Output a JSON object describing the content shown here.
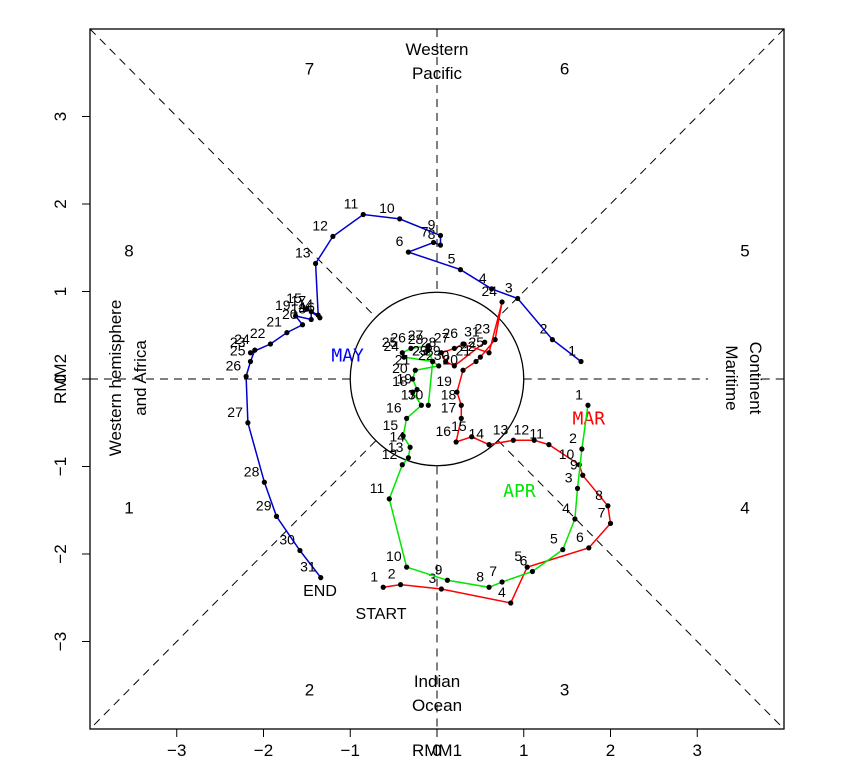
{
  "chart_data": {
    "type": "line",
    "title": "",
    "xlabel": "RMM1",
    "ylabel": "RMM2",
    "xlim": [
      -4,
      4
    ],
    "ylim": [
      -4,
      4
    ],
    "xticks": [
      -3,
      -2,
      -1,
      0,
      1,
      2,
      3
    ],
    "yticks": [
      -3,
      -2,
      -1,
      0,
      1,
      2,
      3
    ],
    "grid": false,
    "unit_circle_radius": 1,
    "phase_numbers": [
      "1",
      "2",
      "3",
      "4",
      "5",
      "6",
      "7",
      "8"
    ],
    "region_labels": {
      "top": [
        "Western",
        "Pacific"
      ],
      "bottom": [
        "Indian",
        "Ocean"
      ],
      "left": [
        "Western hemisphere",
        "and Africa"
      ],
      "right": [
        "Maritime",
        "Continent"
      ]
    },
    "annotations": {
      "start": "START",
      "end": "END"
    },
    "series": [
      {
        "name": "MAR",
        "color": "#ff0000",
        "label_color": "#ff0000",
        "label": "MAR",
        "days": [
          "1",
          "2",
          "3",
          "4",
          "5",
          "6",
          "7",
          "8",
          "9",
          "10",
          "11",
          "12",
          "13",
          "14",
          "15",
          "16",
          "17",
          "18",
          "19",
          "20",
          "21",
          "22",
          "23",
          "24",
          "25",
          "26",
          "27",
          "28",
          "29",
          "30",
          "31"
        ],
        "x": [
          -0.62,
          -0.42,
          0.05,
          0.85,
          1.04,
          1.75,
          2,
          1.97,
          1.68,
          1.64,
          1.29,
          1.12,
          0.88,
          0.6,
          0.4,
          0.22,
          0.28,
          0.28,
          0.23,
          0.3,
          0.45,
          0.5,
          0.67,
          0.75,
          0.6,
          0.3,
          0.2,
          0.05,
          0.1,
          0.2,
          0.55
        ],
        "y": [
          -2.38,
          -2.35,
          -2.4,
          -2.56,
          -2.15,
          -1.93,
          -1.65,
          -1.45,
          -1.1,
          -0.98,
          -0.75,
          -0.7,
          -0.7,
          -0.75,
          -0.66,
          -0.72,
          -0.45,
          -0.3,
          -0.15,
          0.1,
          0.2,
          0.25,
          0.45,
          0.88,
          0.3,
          0.4,
          0.35,
          0.3,
          0.2,
          0.15,
          0.42
        ]
      },
      {
        "name": "APR",
        "color": "#00e600",
        "label_color": "#00e600",
        "label": "APR",
        "days": [
          "1",
          "2",
          "3",
          "4",
          "5",
          "6",
          "7",
          "8",
          "9",
          "10",
          "11",
          "12",
          "13",
          "14",
          "15",
          "16",
          "17",
          "18",
          "19",
          "20",
          "21",
          "22",
          "23",
          "24",
          "25",
          "26",
          "27",
          "28",
          "29",
          "30"
        ],
        "x": [
          1.74,
          1.67,
          1.62,
          1.59,
          1.45,
          1.1,
          0.75,
          0.6,
          0.12,
          -0.35,
          -0.55,
          -0.4,
          -0.33,
          -0.31,
          -0.39,
          -0.35,
          -0.18,
          -0.28,
          -0.23,
          -0.28,
          -0.25,
          0.02,
          -0.05,
          -0.38,
          -0.4,
          -0.3,
          -0.1,
          -0.1,
          -0.05,
          -0.1
        ],
        "y": [
          -0.3,
          -0.8,
          -1.25,
          -1.6,
          -1.95,
          -2.2,
          -2.32,
          -2.38,
          -2.3,
          -2.15,
          -1.37,
          -0.98,
          -0.9,
          -0.78,
          -0.65,
          -0.45,
          -0.3,
          -0.15,
          -0.12,
          0,
          0.1,
          0.15,
          0.2,
          0.25,
          0.3,
          0.35,
          0.38,
          0.33,
          0.2,
          -0.3
        ]
      },
      {
        "name": "MAY",
        "color": "#0000cc",
        "label_color": "#0000ff",
        "label": "MAY",
        "days": [
          "1",
          "2",
          "3",
          "4",
          "5",
          "6",
          "7",
          "8",
          "9",
          "10",
          "11",
          "12",
          "13",
          "14",
          "15",
          "16",
          "17",
          "18",
          "19",
          "20",
          "21",
          "22",
          "23",
          "24",
          "25",
          "26",
          "27",
          "28",
          "29",
          "30",
          "31"
        ],
        "x": [
          1.66,
          1.33,
          0.93,
          0.63,
          0.27,
          -0.33,
          -0.04,
          0.04,
          0.04,
          -0.43,
          -0.85,
          -1.2,
          -1.4,
          -1.37,
          -1.5,
          -1.35,
          -1.45,
          -1.45,
          -1.63,
          -1.55,
          -1.73,
          -1.92,
          -2.15,
          -2.1,
          -2.15,
          -2.2,
          -2.18,
          -1.99,
          -1.85,
          -1.58,
          -1.34
        ],
        "y": [
          0.2,
          0.45,
          0.92,
          1.03,
          1.25,
          1.45,
          1.56,
          1.53,
          1.64,
          1.83,
          1.88,
          1.63,
          1.32,
          0.73,
          0.8,
          0.7,
          0.77,
          0.68,
          0.72,
          0.62,
          0.53,
          0.4,
          0.3,
          0.33,
          0.2,
          0.03,
          -0.5,
          -1.18,
          -1.57,
          -1.96,
          -2.27
        ]
      }
    ]
  }
}
